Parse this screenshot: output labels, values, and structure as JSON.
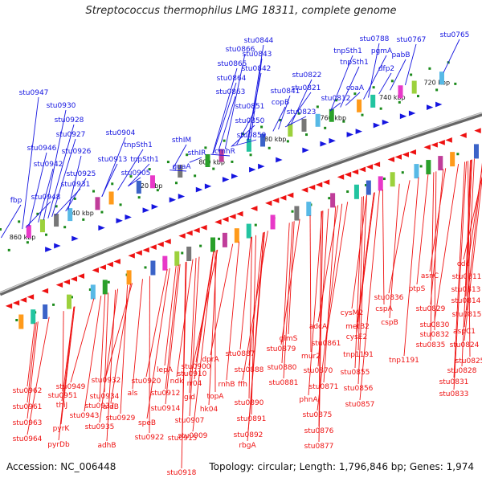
{
  "title": "Streptococcus thermophilus LMG 18311, complete genome",
  "footer": {
    "accession": "Accession: NC_006448",
    "info": "Topology: circular; Length: 1,796,846 bp; Genes: 1,974"
  },
  "colors": {
    "forward": "#1515e0",
    "reverse": "#ee1111",
    "backbone": "#888888",
    "tick": "#1a8a1a"
  },
  "ticks": [
    {
      "label": "860 kbp"
    },
    {
      "label": "840 kbp"
    },
    {
      "label": "820 kbp"
    },
    {
      "label": "800 kbp"
    },
    {
      "label": "780 kbp"
    },
    {
      "label": "760 kbp"
    },
    {
      "label": "740 kbp"
    },
    {
      "label": "720 kbp"
    }
  ],
  "forward_genes": [
    "stu0765",
    "stu0767",
    "stu0788",
    "pabB",
    "tnpSth1",
    "pgmA",
    "tnpSth1",
    "dfp2",
    "stu0812",
    "coaA",
    "stu0822",
    "stu0821",
    "stu0823",
    "stu0844",
    "stu0843",
    "stu0842",
    "stu0866",
    "stu0865",
    "stu0864",
    "stu0863",
    "stu0841",
    "copB",
    "stu0851",
    "stu0850",
    "stu0859",
    "cmhR",
    "sthIM",
    "sthIR",
    "guaA",
    "stu0904",
    "tnpSth1",
    "tnpSth1",
    "stu0913",
    "stu0905",
    "stu0947",
    "stu0930",
    "stu0928",
    "stu0927",
    "stu0946",
    "stu0926",
    "stu0942",
    "stu0925",
    "stu0931",
    "stu0948",
    "fbp"
  ],
  "reverse_genes": [
    "stu0962",
    "stu0961",
    "stu0963",
    "stu0964",
    "stu0949",
    "stu0951",
    "thiJ",
    "pyrK",
    "pyrDb",
    "stu0932",
    "stu0934",
    "stu0937",
    "stu0943",
    "stu0935",
    "aldB",
    "stu0929",
    "adhB",
    "als",
    "stu0920",
    "speB",
    "stu0922",
    "lepA",
    "stu0912",
    "stu0914",
    "stu0910",
    "stu0915",
    "stu0918",
    "ndk",
    "stu0900",
    "rr04",
    "gid",
    "hk04",
    "stu0907",
    "stu0909",
    "dprA",
    "topA",
    "stu0887",
    "rnhB",
    "stu0888",
    "ffh",
    "stu0890",
    "stu0891",
    "stu0892",
    "rbgA",
    "stu0879",
    "glmS",
    "stu0880",
    "stu0881",
    "adcA",
    "stu0861",
    "mur2",
    "stu0870",
    "stu0871",
    "phnA",
    "stu0875",
    "stu0876",
    "stu0877",
    "cysM2",
    "metB2",
    "cysE2",
    "tnp1191",
    "stu0855",
    "stu0856",
    "stu0857",
    "stu0836",
    "cspA",
    "cspB",
    "ptpS",
    "stu0829",
    "stu0830",
    "stu0832",
    "stu0835",
    "tnp1191",
    "asnC",
    "stu0811",
    "stu0813",
    "stu0814",
    "stu0815",
    "aspC1",
    "stu0824",
    "stu0825",
    "stu0828",
    "stu0831",
    "stu0833",
    "cdd"
  ]
}
